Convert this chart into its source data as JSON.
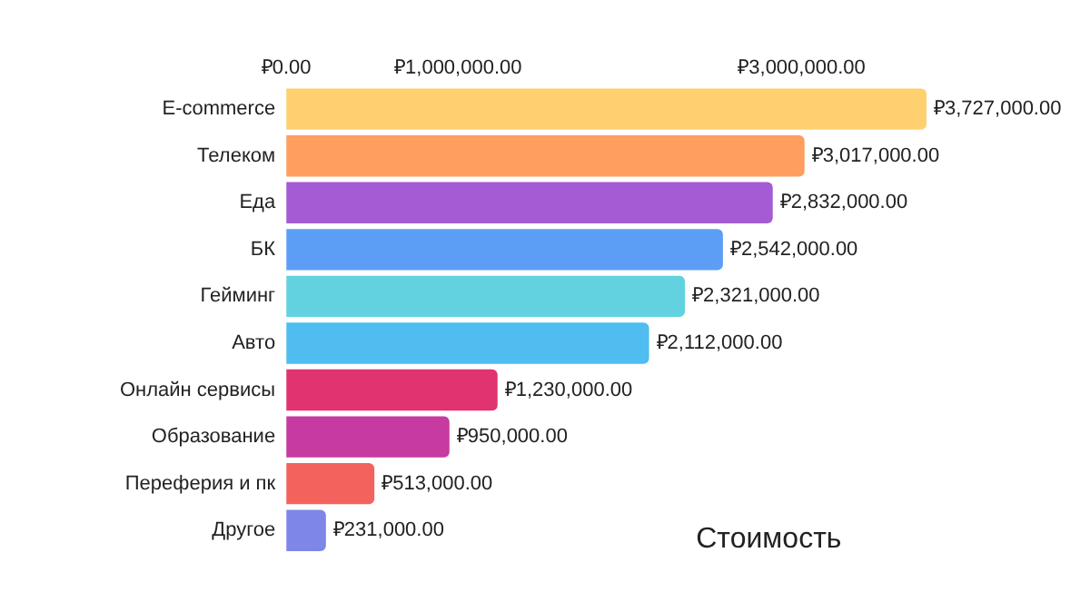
{
  "chart_data": {
    "type": "bar",
    "orientation": "horizontal",
    "categories": [
      "E-commerce",
      "Телеком",
      "Еда",
      "БК",
      "Гейминг",
      "Авто",
      "Онлайн сервисы",
      "Образование",
      "Переферия и пк",
      "Другое"
    ],
    "values": [
      3727000,
      3017000,
      2832000,
      2542000,
      2321000,
      2112000,
      1230000,
      950000,
      513000,
      231000
    ],
    "colors": [
      "#ffd06f",
      "#ff9e5e",
      "#a45bd3",
      "#5c9ef5",
      "#62d2e0",
      "#4fbdf0",
      "#e0336f",
      "#c73aa1",
      "#f4625d",
      "#7e86e8"
    ],
    "value_labels": [
      "₽3,727,000.00",
      "₽3,017,000.00",
      "₽2,832,000.00",
      "₽2,542,000.00",
      "₽2,321,000.00",
      "₽2,112,000.00",
      "₽1,230,000.00",
      "₽950,000.00",
      "₽513,000.00",
      "₽231,000.00"
    ],
    "xlim": [
      0,
      3727000
    ],
    "xticks": [
      {
        "value": 0,
        "label": "₽0.00"
      },
      {
        "value": 1000000,
        "label": "₽1,000,000.00"
      },
      {
        "value": 3000000,
        "label": "₽3,000,000.00"
      }
    ],
    "annotations": [
      "Стоимость"
    ],
    "grid": false,
    "legend": false
  }
}
